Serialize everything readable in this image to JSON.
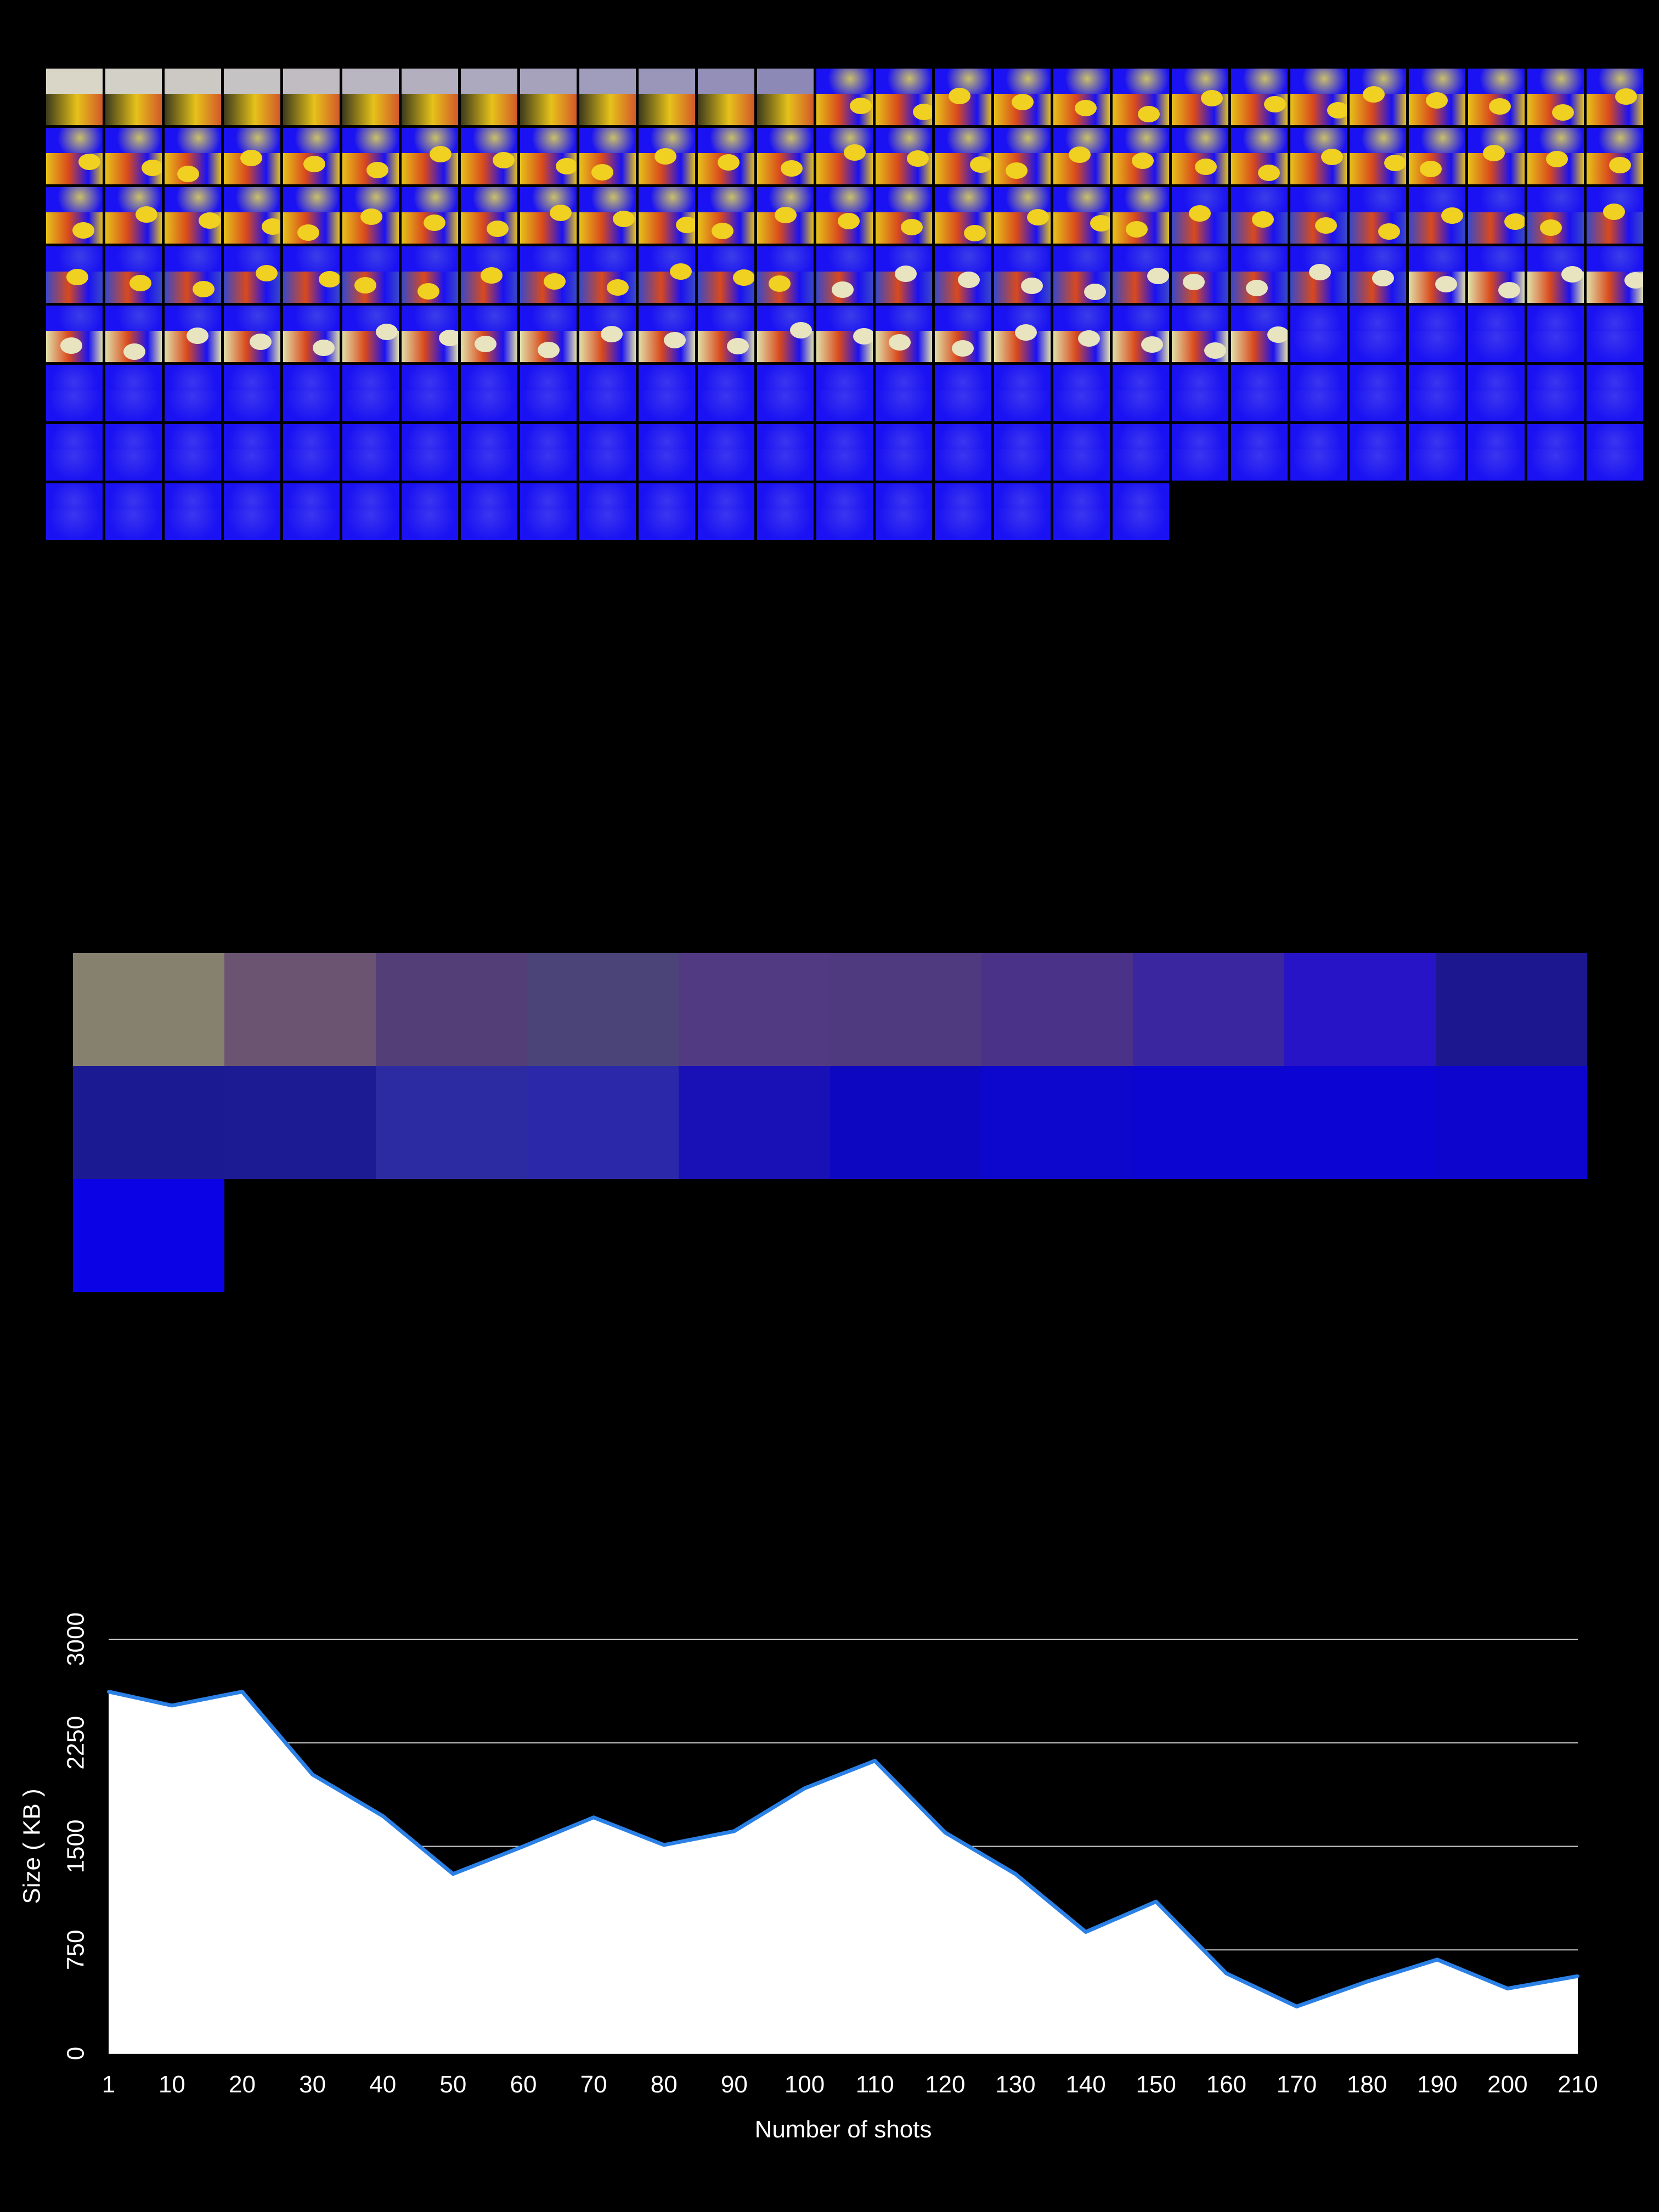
{
  "thumbnails": {
    "count": 208,
    "per_row": 27,
    "first_colors": [
      "#d9d6c8",
      "#3c3a1c",
      "#d2582a"
    ],
    "main_blue": "#1a12f2",
    "main_yellow": "#e6c21a",
    "main_orange": "#d9491c"
  },
  "swatches": {
    "colors": [
      "#86806f",
      "#6a5471",
      "#533e77",
      "#4a4478",
      "#523a82",
      "#4f397f",
      "#4a3289",
      "#3a27a0",
      "#2714c7",
      "#1c178f",
      "#1b1a92",
      "#1c1b94",
      "#2c2ba1",
      "#2b29a9",
      "#1910b5",
      "#0e07c2",
      "#0d06cc",
      "#0c04d1",
      "#0c04d2",
      "#0d05cd",
      "#0b02e6"
    ]
  },
  "chart_data": {
    "type": "area",
    "title": "",
    "xlabel": "Number of shots",
    "ylabel": "Size ( KB )",
    "x": [
      1,
      10,
      20,
      30,
      40,
      50,
      60,
      70,
      80,
      90,
      100,
      110,
      120,
      130,
      140,
      150,
      160,
      170,
      180,
      190,
      200,
      210
    ],
    "x_tick_labels": [
      "1",
      "10",
      "20",
      "30",
      "40",
      "50",
      "60",
      "70",
      "80",
      "90",
      "100",
      "110",
      "120",
      "130",
      "140",
      "150",
      "160",
      "170",
      "180",
      "190",
      "200",
      "210"
    ],
    "series": [
      {
        "values": [
          2620,
          2520,
          2620,
          2020,
          1720,
          1300,
          1500,
          1710,
          1510,
          1610,
          1920,
          2120,
          1600,
          1300,
          880,
          1100,
          580,
          340,
          520,
          680,
          470,
          560
        ]
      }
    ],
    "ylim": [
      0,
      3000
    ],
    "y_ticks": [
      0,
      750,
      1500,
      2250,
      3000
    ],
    "y_tick_labels": [
      "0",
      "750",
      "1500",
      "2250",
      "3000"
    ],
    "grid": true,
    "fill_color": "#ffffff",
    "line_color": "#2a80e4",
    "grid_color": "#cccccc",
    "background": "#000000"
  }
}
